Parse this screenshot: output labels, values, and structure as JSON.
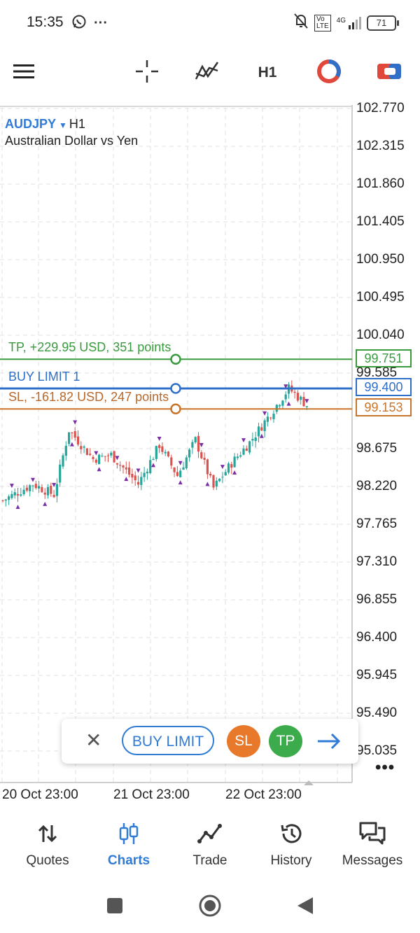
{
  "status_bar": {
    "time": "15:35",
    "battery": "71",
    "network": "4G"
  },
  "toolbar": {
    "timeframe": "H1"
  },
  "chart": {
    "symbol": "AUDJPY",
    "timeframe": "H1",
    "description": "Australian Dollar vs Yen",
    "price_axis": [
      "102.770",
      "102.315",
      "101.860",
      "101.405",
      "100.950",
      "100.495",
      "100.040",
      "99.585",
      "98.675",
      "98.220",
      "97.765",
      "97.310",
      "96.855",
      "96.400",
      "95.945",
      "95.490",
      "95.035"
    ],
    "time_axis": [
      "20 Oct 23:00",
      "21 Oct 23:00",
      "22 Oct 23:00"
    ],
    "tp_label": "TP, +229.95 USD, 351 points",
    "tp_price": "99.751",
    "buy_label": "BUY LIMIT 1",
    "buy_price": "99.400",
    "sl_label": "SL, -161.82 USD, 247 points",
    "sl_price": "99.153",
    "colors": {
      "tp": "#3a9a3e",
      "buy": "#2f6fc8",
      "sl": "#c8742a",
      "up": "#26a69a",
      "down": "#d9534f",
      "marker": "#7b2fa6"
    }
  },
  "order_panel": {
    "buy_label": "BUY LIMIT",
    "sl_label": "SL",
    "tp_label": "TP"
  },
  "bottom_nav": [
    {
      "label": "Quotes",
      "icon": "quotes-icon"
    },
    {
      "label": "Charts",
      "icon": "charts-icon"
    },
    {
      "label": "Trade",
      "icon": "trade-icon"
    },
    {
      "label": "History",
      "icon": "history-icon"
    },
    {
      "label": "Messages",
      "icon": "messages-icon"
    }
  ]
}
